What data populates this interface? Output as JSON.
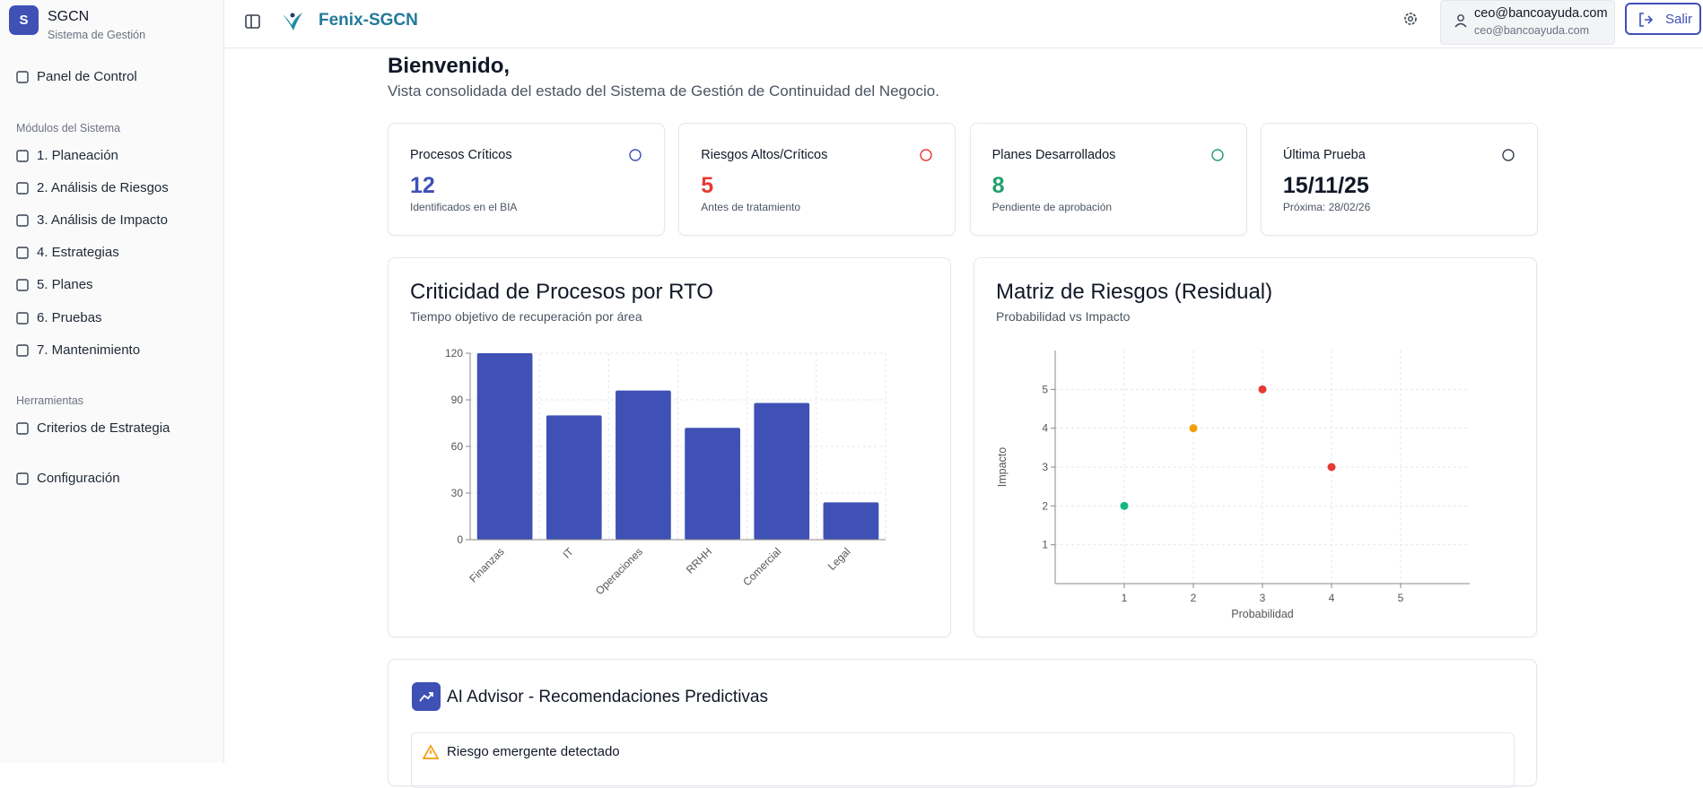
{
  "sidebar": {
    "logo": "S",
    "app_name": "SGCN",
    "app_subtitle": "Sistema de Gestión",
    "nav_main": "Panel de Control",
    "section_modules": "Módulos del Sistema",
    "modules": [
      "1. Planeación",
      "2. Análisis de Riesgos",
      "3. Análisis de Impacto",
      "4. Estrategias",
      "5. Planes",
      "6. Pruebas",
      "7. Mantenimiento"
    ],
    "section_tools": "Herramientas",
    "tools": [
      "Criterios de Estrategia"
    ],
    "settings": "Configuración"
  },
  "header": {
    "brand": "Fenix-SGCN",
    "user_name": "ceo@bancoayuda.com",
    "user_email": "ceo@bancoayuda.com",
    "logout": "Salir"
  },
  "welcome": {
    "title": "Bienvenido,",
    "subtitle": "Vista consolidada del estado del Sistema de Gestión de Continuidad del Negocio."
  },
  "cards": [
    {
      "label": "Procesos Críticos",
      "value": 12,
      "note": "Identificados en el BIA",
      "color": "#3f51b5"
    },
    {
      "label": "Riesgos Altos/Críticos",
      "value": 5,
      "note": "Antes de tratamiento",
      "color": "#e53935"
    },
    {
      "label": "Planes Desarrollados",
      "value": 8,
      "note": "Pendiente de aprobación",
      "color": "#22a06b"
    },
    {
      "label": "Última Prueba",
      "value": "15/11/25",
      "note": "Próxima: 28/02/26",
      "color": "#111827"
    }
  ],
  "chart_data": [
    {
      "type": "bar",
      "title": "Criticidad de Procesos por RTO",
      "subtitle": "Tiempo objetivo de recuperación por área",
      "categories": [
        "Finanzas",
        "IT",
        "Operaciones",
        "RRHH",
        "Comercial",
        "Legal"
      ],
      "values": [
        120,
        80,
        96,
        72,
        88,
        24
      ],
      "color": "#3f51b5",
      "ylim": [
        0,
        120
      ],
      "yticks": [
        0,
        30,
        60,
        90,
        120
      ],
      "grid": true
    },
    {
      "type": "scatter",
      "title": "Matriz de Riesgos (Residual)",
      "subtitle": "Probabilidad vs Impacto",
      "x_label": "Probabilidad",
      "y_label": "Impacto",
      "x": [
        1,
        2,
        3,
        4
      ],
      "values": [
        2,
        4,
        5,
        3
      ],
      "colors": [
        "#10b981",
        "#f59e0b",
        "#e53935",
        "#e53935"
      ],
      "xlim": [
        0,
        6
      ],
      "ylim": [
        0,
        6
      ],
      "xticks": [
        1,
        2,
        3,
        4,
        5
      ],
      "yticks": [
        1,
        2,
        3,
        4,
        5
      ],
      "grid": true
    }
  ],
  "advisor": {
    "title": "AI Advisor - Recomendaciones Predictivas",
    "alert": "Riesgo emergente detectado"
  }
}
